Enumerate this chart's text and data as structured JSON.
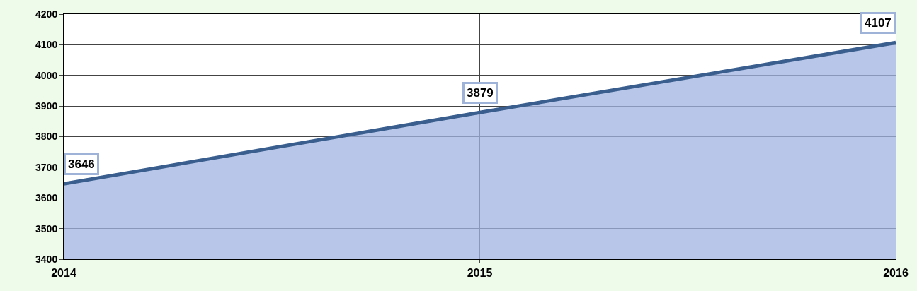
{
  "chart_data": {
    "type": "area",
    "x": [
      2014,
      2015,
      2016
    ],
    "series": [
      {
        "color": "#3a5f8f",
        "values": [
          3646,
          3879,
          4107
        ]
      }
    ],
    "xlim": [
      2014,
      2016
    ],
    "xticks": [
      2014,
      2015,
      2016
    ],
    "ylim": [
      3400,
      4200
    ],
    "yticks": [
      3400,
      3500,
      3600,
      3700,
      3800,
      3900,
      4000,
      4100,
      4200
    ],
    "grid": true,
    "data_labels": true
  }
}
